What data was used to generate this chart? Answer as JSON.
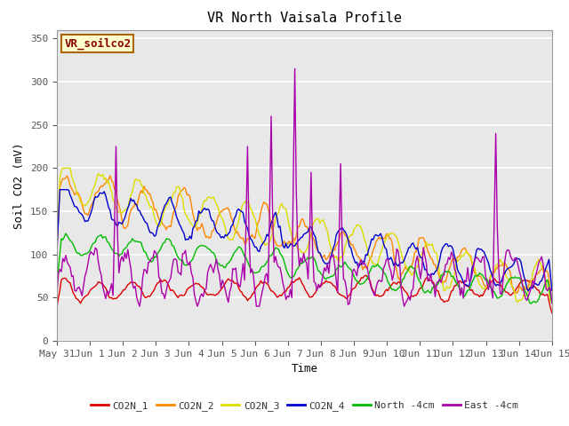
{
  "title": "VR North Vaisala Profile",
  "xlabel": "Time",
  "ylabel": "Soil CO2 (mV)",
  "watermark": "VR_soilco2",
  "ylim": [
    0,
    360
  ],
  "yticks": [
    0,
    50,
    100,
    150,
    200,
    250,
    300,
    350
  ],
  "background_color": "#ffffff",
  "plot_bg_color": "#e8e8e8",
  "grid_color": "#ffffff",
  "legend_labels": [
    "CO2N_1",
    "CO2N_2",
    "CO2N_3",
    "CO2N_4",
    "North -4cm",
    "East -4cm"
  ],
  "line_colors": [
    "#dd0000",
    "#ff8800",
    "#dddd00",
    "#0000cc",
    "#00bb00",
    "#aa00aa"
  ],
  "title_fontsize": 11,
  "label_fontsize": 9,
  "tick_fontsize": 8,
  "legend_fontsize": 8,
  "xticklabels": [
    "May 31",
    "Jun 1",
    "Jun 2",
    "Jun 3",
    "Jun 4",
    "Jun 5",
    "Jun 6",
    "Jun 7",
    "Jun 8",
    "Jun 9",
    "Jun 10",
    "Jun 11",
    "Jun 12",
    "Jun 13",
    "Jun 14",
    "Jun 15"
  ],
  "num_points": 336
}
